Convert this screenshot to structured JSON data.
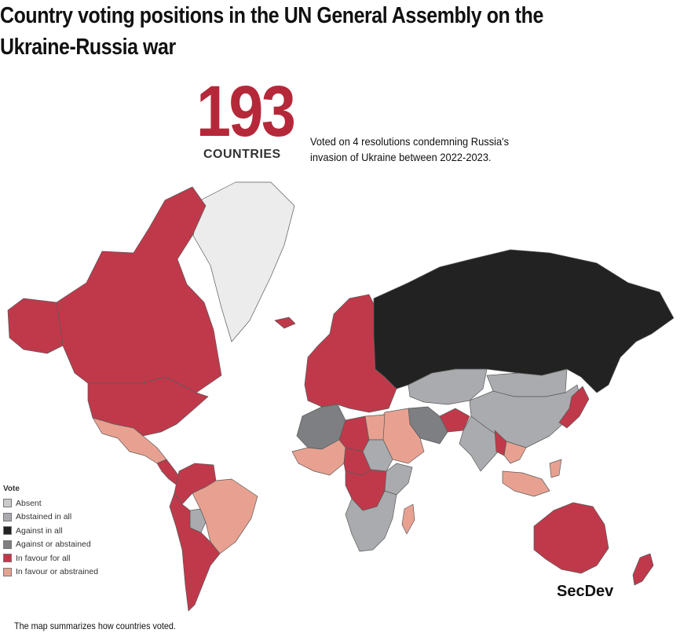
{
  "title": {
    "line1": "Country voting positions in the UN General Assembly on the",
    "line2": "Ukraine-Russia war"
  },
  "headline": {
    "number": "193",
    "unit": "COUNTRIES",
    "description": "Voted on 4 resolutions condemning Russia's invasion of Ukraine between 2022-2023."
  },
  "legend": {
    "title": "Vote",
    "items": [
      {
        "label": "Absent",
        "color": "#c9cbcd"
      },
      {
        "label": "Abstained in all",
        "color": "#a9abae"
      },
      {
        "label": "Against in all",
        "color": "#222222"
      },
      {
        "label": "Against or abstained",
        "color": "#7d7f82"
      },
      {
        "label": "In favour for all",
        "color": "#c0394b"
      },
      {
        "label": "In favour or abstrained",
        "color": "#e8a190"
      }
    ]
  },
  "map": {
    "regions": [
      {
        "name": "greenland",
        "category": "No data"
      },
      {
        "name": "canada",
        "category": "In favour for all"
      },
      {
        "name": "united-states",
        "category": "In favour for all"
      },
      {
        "name": "mexico",
        "category": "In favour or abstrained"
      },
      {
        "name": "central-america",
        "category": "In favour for all"
      },
      {
        "name": "colombia-venezuela",
        "category": "In favour for all"
      },
      {
        "name": "brazil",
        "category": "In favour or abstrained"
      },
      {
        "name": "bolivia",
        "category": "Abstained in all"
      },
      {
        "name": "argentina-chile",
        "category": "In favour for all"
      },
      {
        "name": "europe",
        "category": "In favour for all"
      },
      {
        "name": "russia",
        "category": "Against in all"
      },
      {
        "name": "central-asia",
        "category": "Abstained in all"
      },
      {
        "name": "china",
        "category": "Abstained in all"
      },
      {
        "name": "mongolia",
        "category": "Abstained in all"
      },
      {
        "name": "india",
        "category": "Abstained in all"
      },
      {
        "name": "afghanistan",
        "category": "In favour for all"
      },
      {
        "name": "iran",
        "category": "Against or abstained"
      },
      {
        "name": "middle-east",
        "category": "In favour or abstrained"
      },
      {
        "name": "north-africa-west",
        "category": "Against or abstained"
      },
      {
        "name": "libya",
        "category": "In favour for all"
      },
      {
        "name": "egypt",
        "category": "In favour or abstrained"
      },
      {
        "name": "sudan",
        "category": "Abstained in all"
      },
      {
        "name": "west-africa",
        "category": "In favour or abstrained"
      },
      {
        "name": "chad-niger",
        "category": "In favour for all"
      },
      {
        "name": "central-africa",
        "category": "In favour for all"
      },
      {
        "name": "east-africa",
        "category": "Abstained in all"
      },
      {
        "name": "southern-africa",
        "category": "Abstained in all"
      },
      {
        "name": "madagascar",
        "category": "In favour or abstrained"
      },
      {
        "name": "southeast-asia",
        "category": "In favour or abstrained"
      },
      {
        "name": "myanmar",
        "category": "In favour for all"
      },
      {
        "name": "japan",
        "category": "In favour for all"
      },
      {
        "name": "australia",
        "category": "In favour for all"
      },
      {
        "name": "new-zealand",
        "category": "In favour for all"
      }
    ]
  },
  "brand": "SecDev",
  "footnote": "The map summarizes how countries voted."
}
